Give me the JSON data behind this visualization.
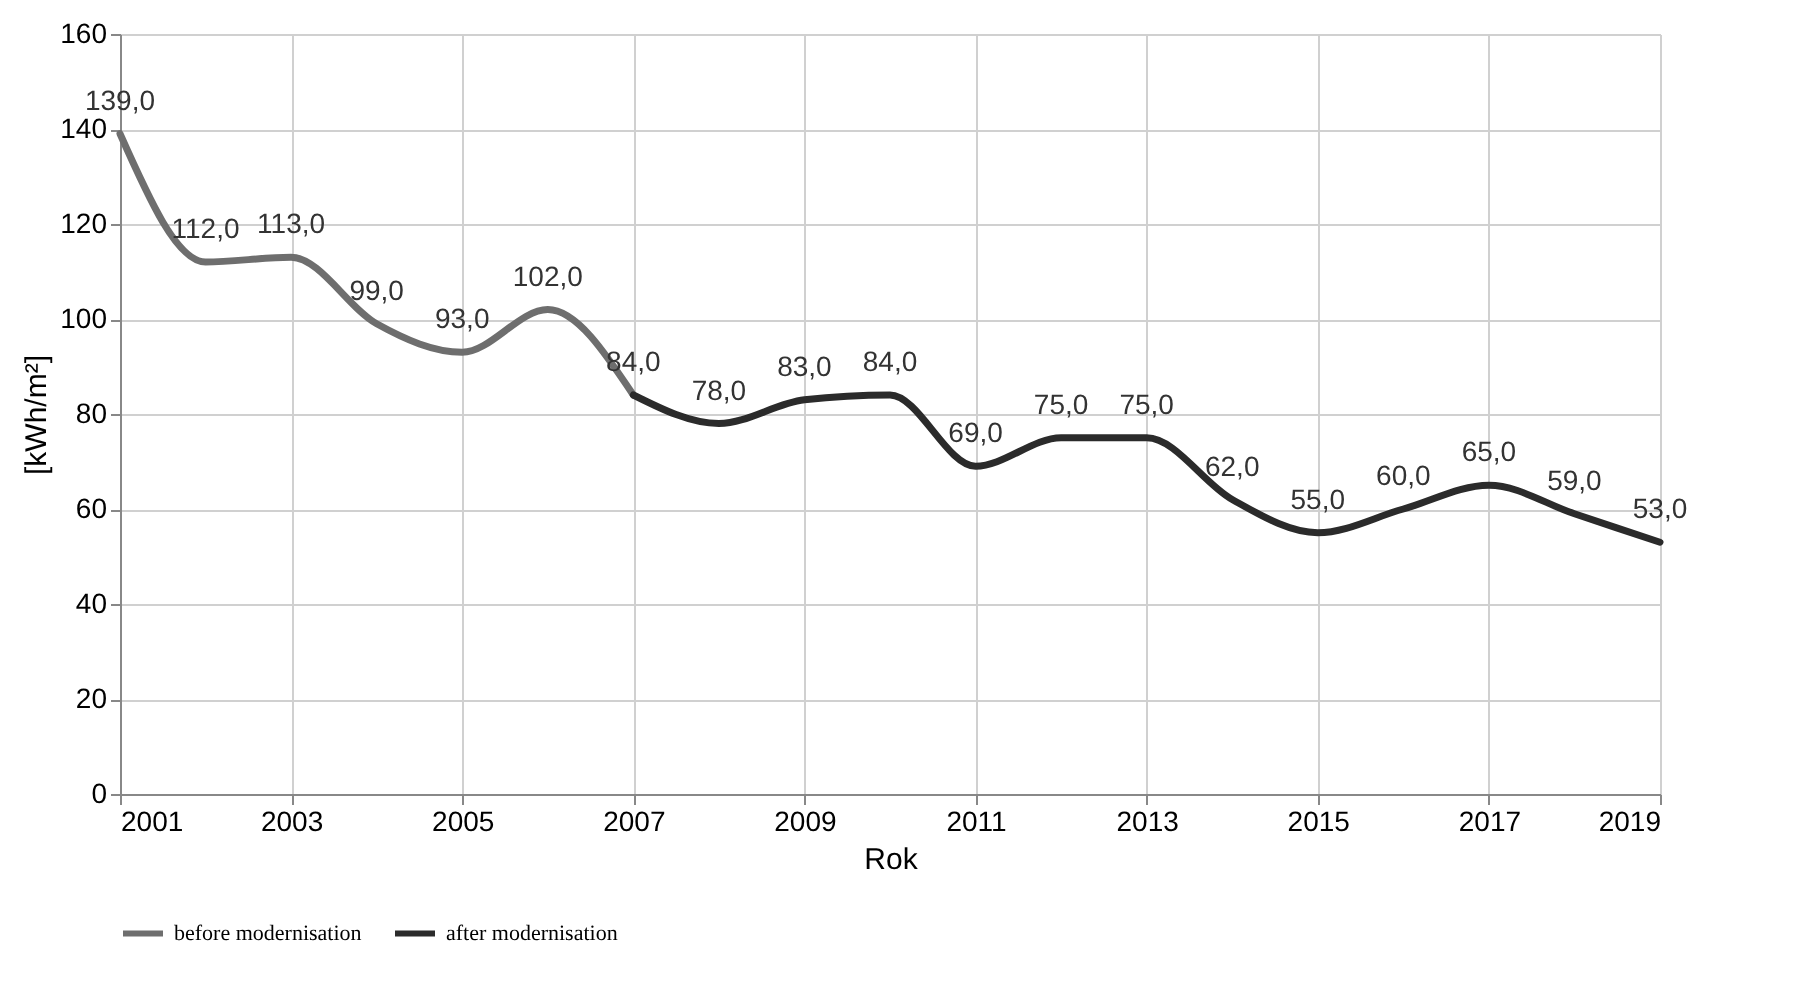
{
  "chart_data": {
    "type": "line",
    "xlabel": "Rok",
    "ylabel": "[kWh/m²]",
    "xlim": [
      2001,
      2019
    ],
    "xticks": [
      2001,
      2003,
      2005,
      2007,
      2009,
      2011,
      2013,
      2015,
      2017,
      2019
    ],
    "ylim": [
      0,
      160
    ],
    "yticks": [
      0,
      20,
      40,
      60,
      80,
      100,
      120,
      140,
      160
    ],
    "grid": true,
    "legend": "bottom",
    "marker": "none",
    "line_style": "solid",
    "series": [
      {
        "name": "before modernisation",
        "color": "#6e6e6e",
        "x": [
          2001,
          2002,
          2003,
          2004,
          2005,
          2006,
          2007
        ],
        "values": [
          139,
          112,
          113,
          99,
          93,
          102,
          84
        ],
        "value_labels": [
          "139,0",
          "112,0",
          "113,0",
          "99,0",
          "93,0",
          "102,0",
          "84,0"
        ]
      },
      {
        "name": "after modernisation",
        "color": "#2b2b2b",
        "x": [
          2007,
          2008,
          2009,
          2010,
          2011,
          2012,
          2013,
          2014,
          2015,
          2016,
          2017,
          2018,
          2019
        ],
        "values": [
          84,
          78,
          83,
          84,
          69,
          75,
          75,
          62,
          55,
          60,
          65,
          59,
          53
        ],
        "value_labels": [
          null,
          "78,0",
          "83,0",
          "84,0",
          "69,0",
          "75,0",
          "75,0",
          "62,0",
          "55,0",
          "60,0",
          "65,0",
          "59,0",
          "53,0"
        ]
      }
    ]
  }
}
